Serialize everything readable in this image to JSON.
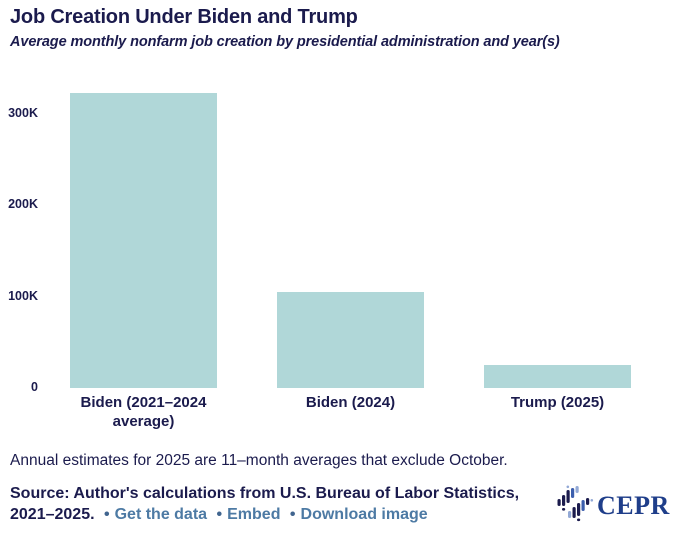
{
  "header": {
    "title": "Job Creation Under Biden and Trump",
    "subtitle": "Average monthly nonfarm job creation by presidential administration and year(s)"
  },
  "chart_data": {
    "type": "bar",
    "title": "Job Creation Under Biden and Trump",
    "subtitle": "Average monthly nonfarm job creation by presidential administration and year(s)",
    "categories": [
      "Biden (2021–2024 average)",
      "Biden (2024)",
      "Trump (2025)"
    ],
    "values": [
      322,
      105,
      25
    ],
    "unit": "thousands of jobs per month",
    "xlabel": "",
    "ylabel": "",
    "ylim": [
      0,
      340
    ],
    "yticks": [
      {
        "value": 0,
        "label": "0"
      },
      {
        "value": 100,
        "label": "100K"
      },
      {
        "value": 200,
        "label": "200K"
      },
      {
        "value": 300,
        "label": "300K"
      }
    ],
    "grid": false,
    "legend": false,
    "bar_color": "#b0d7d8"
  },
  "footer": {
    "note": "Annual estimates for 2025 are 11–month averages that exclude October.",
    "source_line1": "Source: Author's calculations from U.S. Bureau of Labor Statistics,",
    "source_line2": "2021–2025.",
    "separator": "•",
    "links": [
      {
        "label": "Get the data"
      },
      {
        "label": "Embed"
      },
      {
        "label": "Download image"
      }
    ]
  },
  "branding": {
    "wordmark": "CEPR",
    "logo_icon": "cepr-bars-logo"
  },
  "colors": {
    "navy": "#1b1b4d",
    "bar": "#b0d7d8",
    "link": "#4d7aa4",
    "cepr_blue": "#1f3e8a",
    "logo_mid_blue": "#3c5fae",
    "logo_light_blue": "#93a9d6"
  }
}
